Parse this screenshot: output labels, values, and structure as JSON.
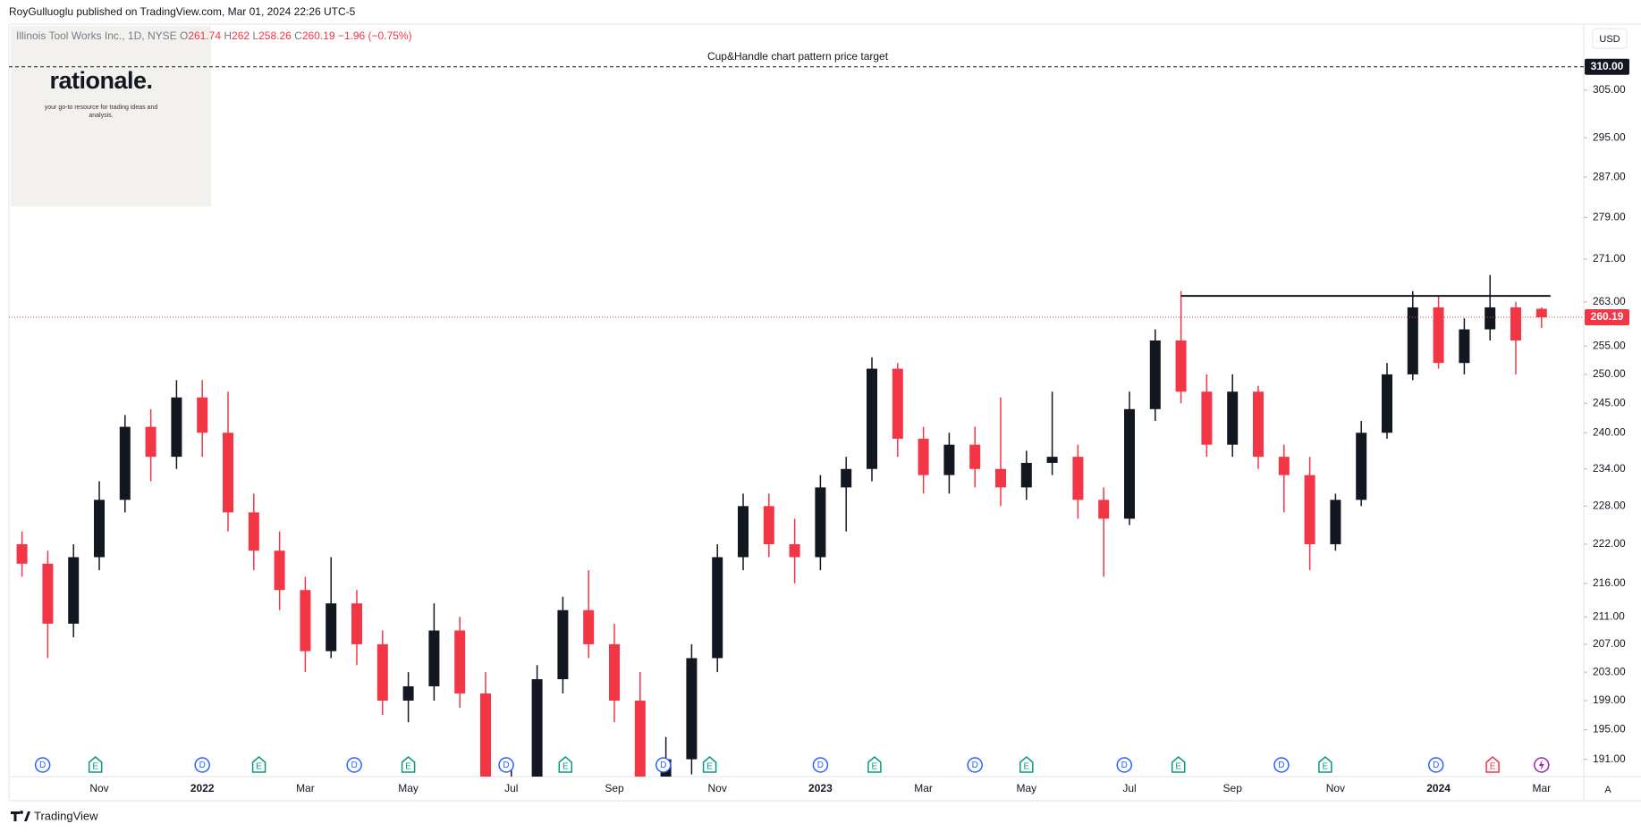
{
  "chart_data": {
    "type": "candlestick",
    "publisher": "RoyGulluoglu published on TradingView.com, Mar 01, 2024 22:26 UTC-5",
    "symbol": "Illinois Tool Works Inc., 1D, NYSE",
    "ohlc_letters": [
      "O",
      "H",
      "L",
      "C"
    ],
    "change_text": "−1.96 (−0.75%)",
    "currency": "USD",
    "logo": {
      "name": "rationale.",
      "tagline": "your go-to resource for trading ideas and analysis."
    },
    "footer": "TradingView",
    "scale_button": "A",
    "log_scale": true,
    "up_color": "#131722",
    "down_color": "#f23645",
    "categories": [
      null,
      null,
      null,
      "Nov",
      null,
      null,
      null,
      "2022",
      null,
      null,
      null,
      "Mar",
      null,
      null,
      null,
      "May",
      null,
      null,
      null,
      "Jul",
      null,
      null,
      null,
      "Sep",
      null,
      null,
      null,
      "Nov",
      null,
      null,
      null,
      "2023",
      null,
      null,
      null,
      "Mar",
      null,
      null,
      null,
      "May",
      null,
      null,
      null,
      "Jul",
      null,
      null,
      null,
      "Sep",
      null,
      null,
      null,
      "Nov",
      null,
      null,
      null,
      "2024",
      null,
      null,
      null,
      "Mar"
    ],
    "open": [
      222,
      219,
      210,
      220,
      229,
      241,
      236,
      246,
      240,
      227,
      221,
      215,
      206,
      213,
      207,
      199,
      201,
      209,
      200,
      186,
      188,
      202,
      212,
      207,
      199,
      188,
      191,
      205,
      220,
      228,
      222,
      220,
      231,
      234,
      251,
      239,
      233,
      238,
      234,
      231,
      235,
      236,
      229,
      226,
      244,
      256,
      247,
      238,
      247,
      236,
      233,
      222,
      229,
      240,
      250,
      262,
      252,
      258,
      262,
      261.74
    ],
    "high": [
      224,
      221,
      222,
      232,
      243,
      244,
      249,
      249,
      247,
      230,
      224,
      217,
      220,
      215,
      209,
      203,
      213,
      211,
      203,
      190,
      204,
      214,
      218,
      210,
      203,
      194,
      207,
      222,
      230,
      230,
      226,
      233,
      236,
      253,
      252,
      241,
      240,
      241,
      246,
      237,
      247,
      238,
      231,
      247,
      258,
      265,
      250,
      250,
      248,
      238,
      236,
      230,
      242,
      252,
      265,
      264,
      260,
      268,
      263,
      262
    ],
    "low": [
      217,
      205,
      208,
      218,
      227,
      232,
      234,
      236,
      224,
      218,
      212,
      203,
      205,
      204,
      197,
      196,
      199,
      198,
      183,
      182,
      186,
      200,
      205,
      196,
      186,
      184,
      189,
      203,
      218,
      220,
      216,
      218,
      224,
      232,
      236,
      230,
      230,
      231,
      228,
      229,
      233,
      226,
      217,
      225,
      242,
      245,
      236,
      236,
      234,
      227,
      218,
      221,
      228,
      239,
      249,
      251,
      250,
      256,
      250,
      258.26
    ],
    "close": [
      219,
      210,
      220,
      229,
      241,
      236,
      246,
      240,
      227,
      221,
      215,
      206,
      213,
      207,
      199,
      201,
      209,
      200,
      186,
      188,
      202,
      212,
      207,
      199,
      188,
      191,
      205,
      220,
      228,
      222,
      220,
      231,
      234,
      251,
      239,
      233,
      238,
      234,
      231,
      235,
      236,
      229,
      226,
      244,
      256,
      247,
      238,
      247,
      236,
      233,
      222,
      229,
      240,
      250,
      262,
      252,
      258,
      262,
      256,
      260.19
    ],
    "ylim": [
      188.7,
      319
    ],
    "yticks": [
      {
        "value": 191,
        "label": "191.00"
      },
      {
        "value": 195,
        "label": "195.00"
      },
      {
        "value": 199,
        "label": "199.00"
      },
      {
        "value": 203,
        "label": "203.00"
      },
      {
        "value": 207,
        "label": "207.00"
      },
      {
        "value": 211,
        "label": "211.00"
      },
      {
        "value": 216,
        "label": "216.00"
      },
      {
        "value": 222,
        "label": "222.00"
      },
      {
        "value": 228,
        "label": "228.00"
      },
      {
        "value": 234,
        "label": "234.00"
      },
      {
        "value": 240,
        "label": "240.00"
      },
      {
        "value": 245,
        "label": "245.00"
      },
      {
        "value": 250,
        "label": "250.00"
      },
      {
        "value": 255,
        "label": "255.00"
      },
      {
        "value": 263,
        "label": "263.00"
      },
      {
        "value": 271,
        "label": "271.00"
      },
      {
        "value": 279,
        "label": "279.00"
      },
      {
        "value": 287,
        "label": "287.00"
      },
      {
        "value": 295,
        "label": "295.00"
      },
      {
        "value": 305,
        "label": "305.00"
      }
    ],
    "target": {
      "value": 310,
      "value_label": "310.00",
      "label": "Cup&Handle chart pattern price target"
    },
    "resistance": {
      "value": 264.1
    },
    "events": [
      {
        "label": "D",
        "x": 0.8
      },
      {
        "label": "E",
        "x": 2.85
      },
      {
        "label": "D",
        "x": 7.0
      },
      {
        "label": "E",
        "x": 9.2
      },
      {
        "label": "D",
        "x": 12.9
      },
      {
        "label": "E",
        "x": 15.0
      },
      {
        "label": "D",
        "x": 18.8
      },
      {
        "label": "E",
        "x": 21.1
      },
      {
        "label": "D",
        "x": 24.9
      },
      {
        "label": "E",
        "x": 26.7
      },
      {
        "label": "D",
        "x": 31.0
      },
      {
        "label": "E",
        "x": 33.1
      },
      {
        "label": "D",
        "x": 37.0
      },
      {
        "label": "E",
        "x": 39.0
      },
      {
        "label": "D",
        "x": 42.8
      },
      {
        "label": "E",
        "x": 44.9
      },
      {
        "label": "D",
        "x": 48.9
      },
      {
        "label": "E",
        "x": 50.6
      },
      {
        "label": "D",
        "x": 54.9
      },
      {
        "label": "E",
        "x": 57.1
      }
    ]
  }
}
